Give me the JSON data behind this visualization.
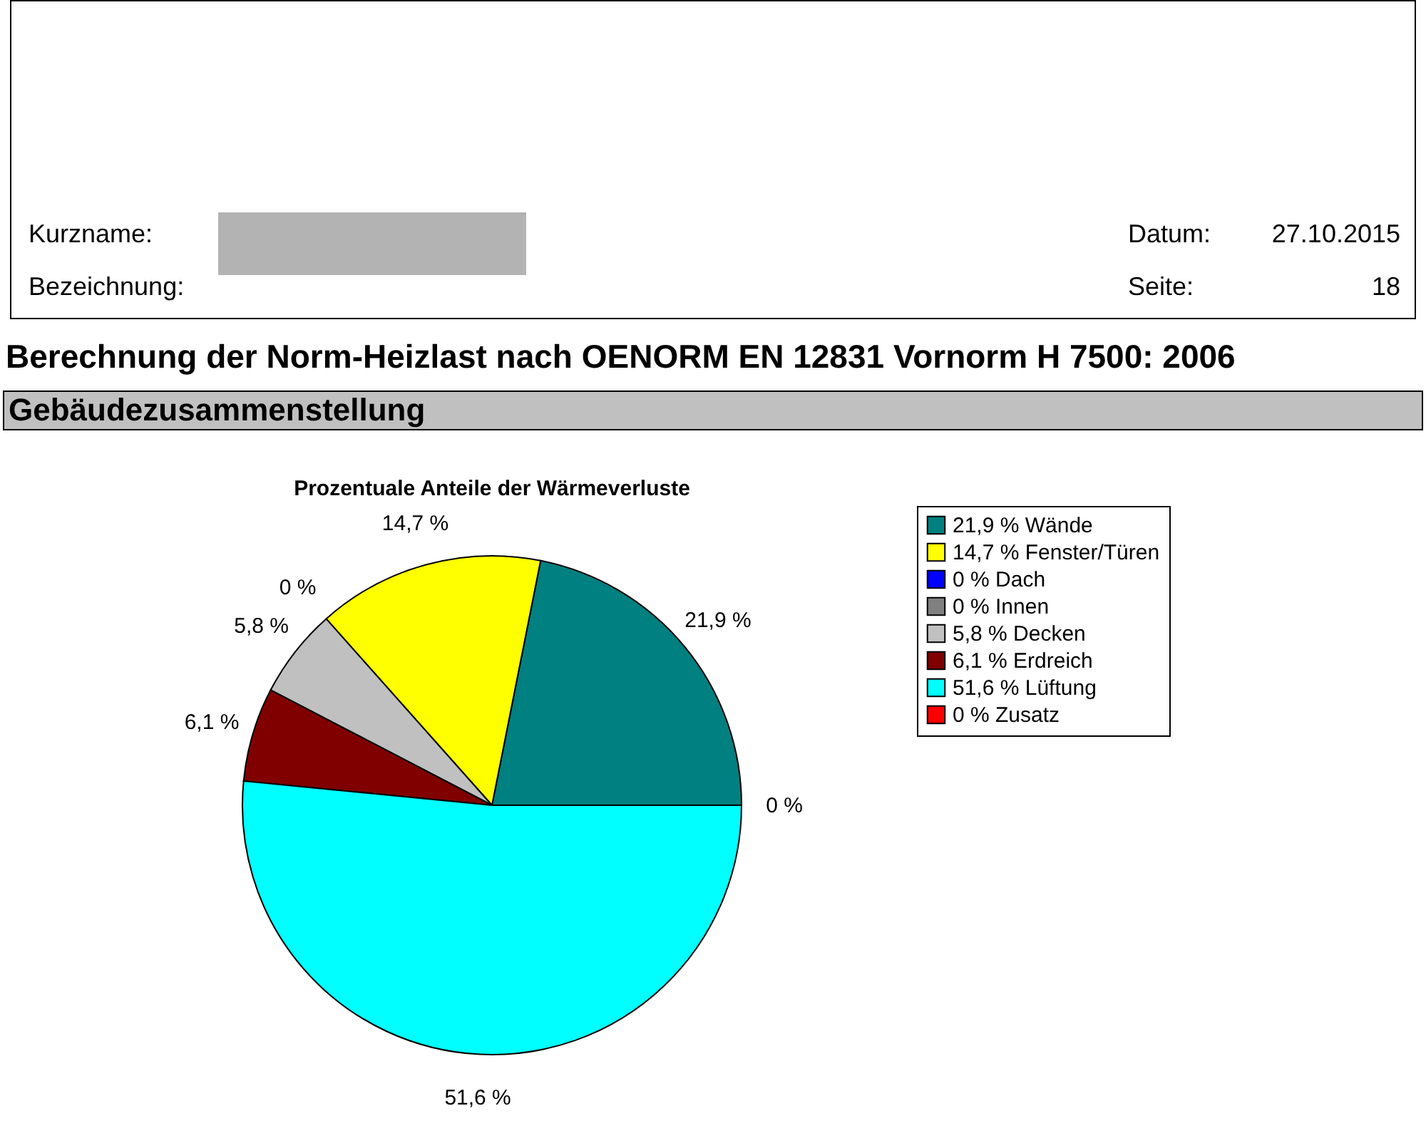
{
  "chart_data": {
    "type": "pie",
    "title": "Prozentuale Anteile der Wärmeverluste",
    "categories": [
      "21,9 % Wände",
      "14,7 % Fenster/Türen",
      "0 % Dach",
      "0 % Innen",
      "5,8 % Decken",
      "6,1 % Erdreich",
      "51,6 % Lüftung",
      "0 % Zusatz"
    ],
    "values": [
      21.9,
      14.7,
      0,
      0,
      5.8,
      6.1,
      51.6,
      0
    ],
    "colors": [
      "#008080",
      "#ffff00",
      "#0000ff",
      "#808080",
      "#c0c0c0",
      "#800000",
      "#00ffff",
      "#ff0000"
    ],
    "value_labels": [
      "21,9 %",
      "14,7 %",
      "0 %",
      null,
      "5,8 %",
      "6,1 %",
      "51,6 %",
      "0 %"
    ],
    "legend": "right",
    "annotations": [
      "Berechnung der Norm-Heizlast nach OENORM EN 12831 Vornorm H 7500: 2006",
      "Gebäudezusammenstellung",
      "Kurzname:",
      "Bezeichnung:",
      "Datum:",
      "27.10.2015",
      "Seite:",
      "18"
    ]
  }
}
